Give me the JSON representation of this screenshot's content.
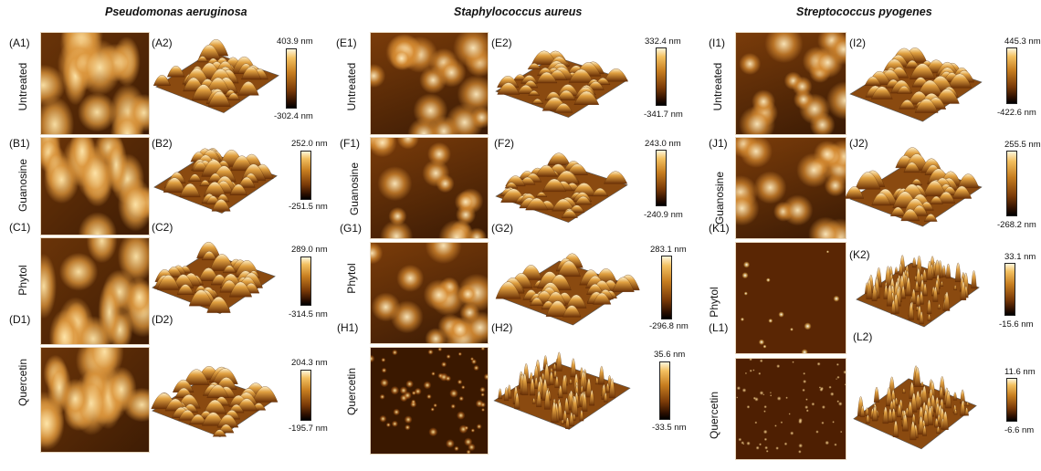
{
  "columns": [
    {
      "title": "Pseudomonas aeruginosa"
    },
    {
      "title": "Staphylococcus aureus"
    },
    {
      "title": "Streptococcus pyogenes"
    }
  ],
  "treatments": [
    "Untreated",
    "Guanosine",
    "Phytol",
    "Quercetin"
  ],
  "panels": {
    "A1": "(A1)",
    "A2": "(A2)",
    "B1": "(B1)",
    "B2": "(B2)",
    "C1": "(C1)",
    "C2": "(C2)",
    "D1": "(D1)",
    "D2": "(D2)",
    "E1": "(E1)",
    "E2": "(E2)",
    "F1": "(F1)",
    "F2": "(F2)",
    "G1": "(G1)",
    "G2": "(G2)",
    "H1": "(H1)",
    "H2": "(H2)",
    "I1": "(I1)",
    "I2": "(I2)",
    "J1": "(J1)",
    "J2": "(J2)",
    "K1": "(K1)",
    "K2": "(K2)",
    "L1": "(L1)",
    "L2": "(L2)"
  },
  "colorbars": {
    "A": {
      "max": "403.9 nm",
      "min": "-302.4 nm"
    },
    "B": {
      "max": "252.0 nm",
      "min": "-251.5 nm"
    },
    "C": {
      "max": "289.0 nm",
      "min": "-314.5 nm"
    },
    "D": {
      "max": "204.3 nm",
      "min": "-195.7 nm"
    },
    "E": {
      "max": "332.4 nm",
      "min": "-341.7 nm"
    },
    "F": {
      "max": "243.0 nm",
      "min": "-240.9 nm"
    },
    "G": {
      "max": "283.1 nm",
      "min": "-296.8 nm"
    },
    "H": {
      "max": "35.6 nm",
      "min": "-33.5 nm"
    },
    "I": {
      "max": "445.3 nm",
      "min": "-422.6 nm"
    },
    "J": {
      "max": "255.5 nm",
      "min": "-268.2 nm"
    },
    "K": {
      "max": "33.1 nm",
      "min": "-15.6 nm"
    },
    "L": {
      "max": "11.6 nm",
      "min": "-6.6 nm"
    }
  }
}
